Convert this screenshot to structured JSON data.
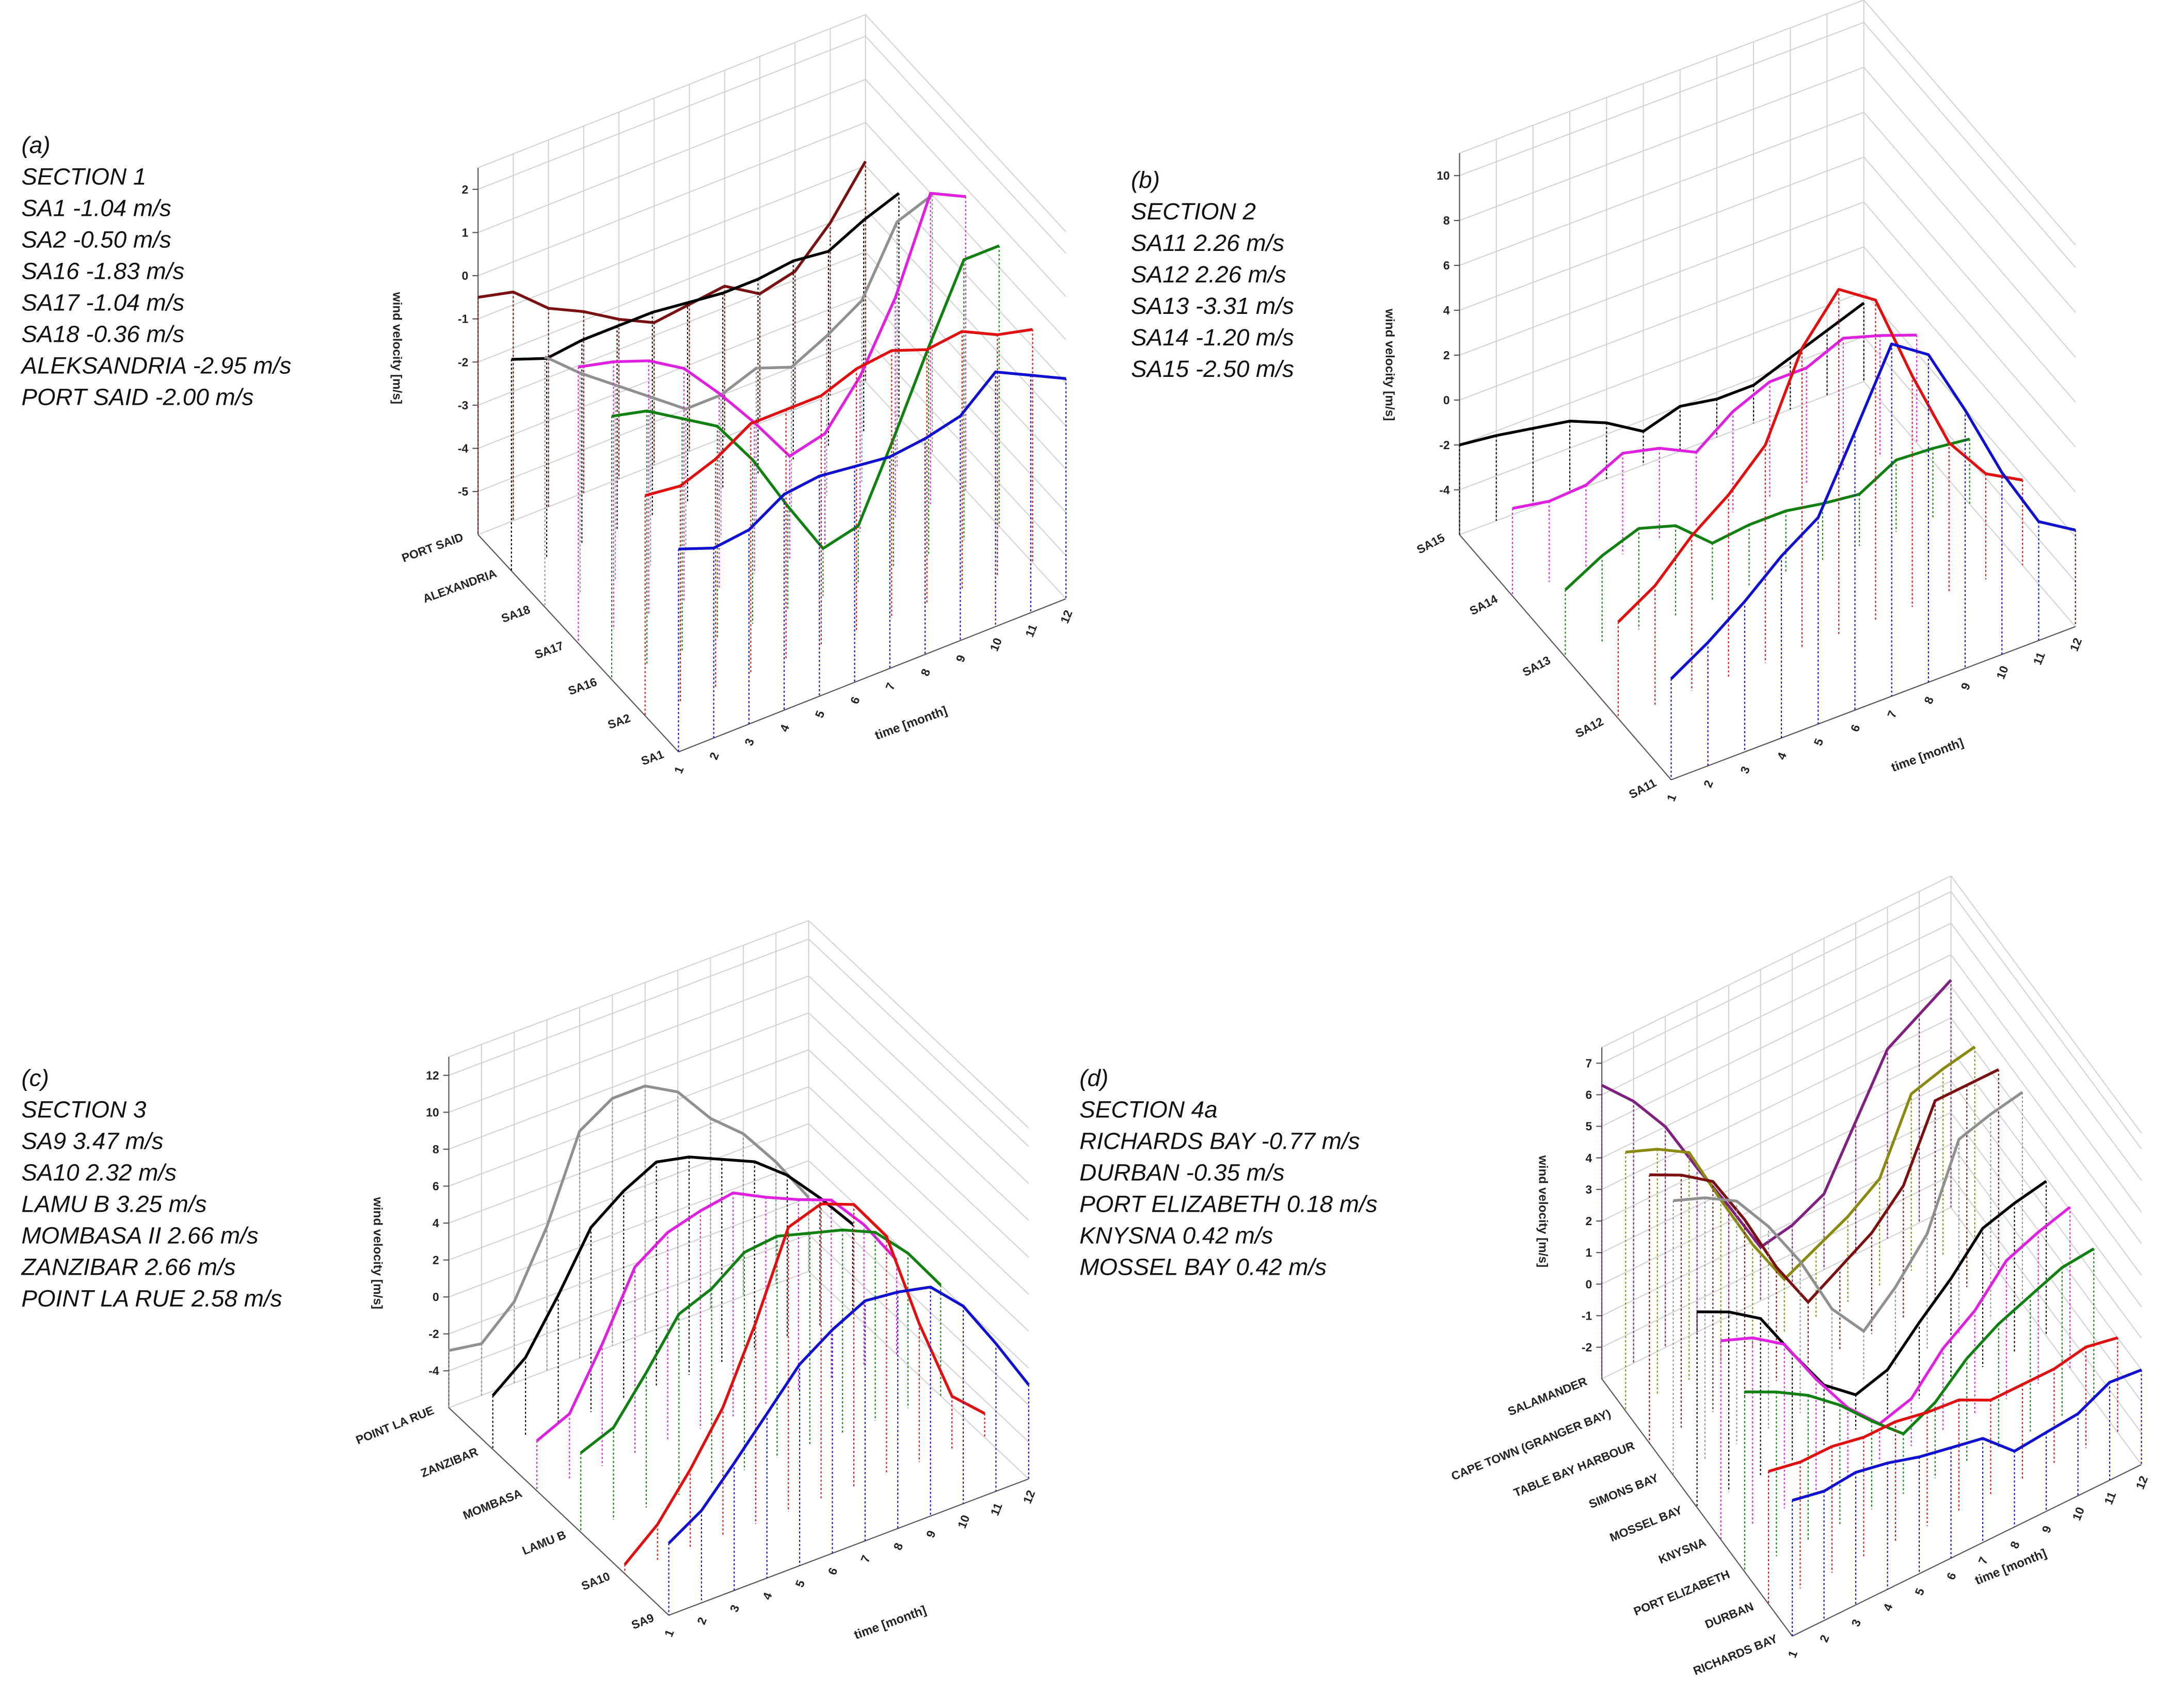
{
  "chart_data": [
    {
      "type": "line3d",
      "annotations": [
        "(a)",
        "SECTION 1",
        "SA1 -1.04 m/s",
        "SA2 -0.50 m/s",
        "SA16 -1.83 m/s",
        "SA17 -1.04 m/s",
        "SA18 -0.36 m/s",
        "ALEKSANDRIA -2.95 m/s",
        "PORT SAID -2.00 m/s"
      ],
      "xlabel": "time [month]",
      "ylabel": "wind velocity [m/s]",
      "x": [
        1,
        2,
        3,
        4,
        5,
        6,
        7,
        8,
        9,
        10,
        11,
        12
      ],
      "xlim": [
        1,
        12
      ],
      "ylim": [
        -6,
        2.5
      ],
      "yticks": [
        -5,
        -4,
        -3,
        -2,
        -1,
        0,
        1,
        2
      ],
      "series": [
        {
          "name": "SA1",
          "color": "#1010d0",
          "values": [
            -1.3,
            -1.6,
            -1.5,
            -1.0,
            -0.9,
            -1.0,
            -1.1,
            -1.0,
            -0.8,
            -0.1,
            -0.5,
            -0.9
          ]
        },
        {
          "name": "SA2",
          "color": "#e01010",
          "values": [
            -0.9,
            -1.0,
            -0.7,
            -0.2,
            -0.2,
            -0.2,
            0.1,
            0.2,
            -0.1,
            0.0,
            -0.4,
            -0.6
          ]
        },
        {
          "name": "SA16",
          "color": "#108010",
          "values": [
            0.1,
            -0.1,
            -0.6,
            -1.1,
            -2.2,
            -3.6,
            -4.9,
            -4.7,
            -3.0,
            -1.2,
            0.5,
            0.5
          ]
        },
        {
          "name": "SA17",
          "color": "#e020e0",
          "values": [
            0.4,
            0.2,
            -0.1,
            -0.6,
            -1.5,
            -2.5,
            -3.6,
            -3.4,
            -2.4,
            -0.9,
            1.2,
            0.8
          ]
        },
        {
          "name": "SA18",
          "color": "#909090",
          "values": [
            -0.2,
            -0.9,
            -1.5,
            -2.1,
            -2.7,
            -2.7,
            -2.4,
            -2.7,
            -2.3,
            -1.8,
            -0.3,
            0.0
          ]
        },
        {
          "name": "ALEXANDRIA",
          "color": "#000000",
          "values": [
            -1.1,
            -1.4,
            -1.3,
            -1.3,
            -1.3,
            -1.4,
            -1.5,
            -1.5,
            -1.4,
            -1.5,
            -1.1,
            -0.8
          ]
        },
        {
          "name": "PORT SAID",
          "color": "#7a1010",
          "values": [
            -0.5,
            -0.7,
            -1.4,
            -1.8,
            -2.3,
            -2.7,
            -2.6,
            -2.5,
            -3.0,
            -2.8,
            -2.0,
            -0.9
          ]
        }
      ]
    },
    {
      "type": "line3d",
      "annotations": [
        "(b)",
        "SECTION 2",
        "SA11 2.26 m/s",
        "SA12 2.26 m/s",
        "SA13 -3.31 m/s",
        "SA14 -1.20 m/s",
        "SA15 -2.50 m/s"
      ],
      "xlabel": "time [month]",
      "ylabel": "wind velocity [m/s]",
      "x": [
        1,
        2,
        3,
        4,
        5,
        6,
        7,
        8,
        9,
        10,
        11,
        12
      ],
      "xlim": [
        1,
        12
      ],
      "ylim": [
        -6,
        11
      ],
      "yticks": [
        -4,
        -2,
        0,
        2,
        4,
        6,
        8,
        10
      ],
      "series": [
        {
          "name": "SA11",
          "color": "#1010d0",
          "values": [
            -1.5,
            -0.5,
            0.7,
            2.1,
            3.2,
            6.4,
            9.7,
            8.6,
            5.5,
            2.1,
            -0.7,
            -1.7
          ]
        },
        {
          "name": "SA12",
          "color": "#e01010",
          "values": [
            -1.7,
            -0.7,
            0.9,
            2.1,
            3.7,
            7.4,
            9.4,
            8.3,
            4.3,
            0.7,
            -1.3,
            -2.2
          ]
        },
        {
          "name": "SA13",
          "color": "#108010",
          "values": [
            -3.0,
            -2.1,
            -1.5,
            -2.0,
            -3.4,
            -3.2,
            -3.2,
            -3.5,
            -3.7,
            -2.8,
            -2.9,
            -3.1
          ]
        },
        {
          "name": "SA14",
          "color": "#e020e0",
          "values": [
            -2.1,
            -2.4,
            -2.3,
            -1.5,
            -1.9,
            -2.7,
            -1.5,
            -0.8,
            -0.8,
            -0.1,
            -0.6,
            -1.2
          ]
        },
        {
          "name": "SA15",
          "color": "#000000",
          "values": [
            -2.0,
            -2.2,
            -2.5,
            -2.8,
            -3.5,
            -4.5,
            -4.0,
            -4.3,
            -4.3,
            -3.7,
            -3.1,
            -2.5
          ]
        }
      ]
    },
    {
      "type": "line3d",
      "annotations": [
        "(c)",
        "SECTION 3",
        "SA9 3.47 m/s",
        "SA10 2.32 m/s",
        "LAMU B 3.25 m/s",
        "MOMBASA II 2.66 m/s",
        "ZANZIBAR 2.66 m/s",
        "POINT LA RUE 2.58 m/s"
      ],
      "xlabel": "time [month]",
      "ylabel": "wind velocity [m/s]",
      "x": [
        1,
        2,
        3,
        4,
        5,
        6,
        7,
        8,
        9,
        10,
        11,
        12
      ],
      "xlim": [
        1,
        12
      ],
      "ylim": [
        -6,
        13
      ],
      "yticks": [
        -4,
        -2,
        0,
        2,
        4,
        6,
        8,
        10,
        12
      ],
      "series": [
        {
          "name": "SA9",
          "color": "#1010d0",
          "values": [
            -2.1,
            -1.0,
            0.9,
            2.9,
            4.9,
            6.1,
            7.0,
            6.8,
            6.4,
            4.7,
            2.0,
            -0.9
          ]
        },
        {
          "name": "SA10",
          "color": "#e01010",
          "values": [
            -5.5,
            -4.0,
            -1.7,
            1.0,
            4.9,
            9.4,
            10.0,
            9.3,
            6.9,
            1.5,
            -3.1,
            -4.7
          ]
        },
        {
          "name": "LAMU B",
          "color": "#108010",
          "values": [
            -1.7,
            -1.0,
            1.3,
            3.8,
            4.5,
            5.8,
            6.0,
            5.5,
            5.0,
            4.2,
            2.4,
            0.0
          ]
        },
        {
          "name": "MOMBASA",
          "color": "#e020e0",
          "values": [
            -3.3,
            -2.5,
            0.6,
            4.1,
            5.3,
            5.8,
            6.1,
            5.2,
            4.4,
            3.7,
            1.7,
            -0.9
          ]
        },
        {
          "name": "ZANZIBAR",
          "color": "#000000",
          "values": [
            -3.1,
            -1.7,
            1.0,
            4.0,
            5.3,
            6.2,
            5.8,
            5.0,
            4.2,
            2.8,
            0.9,
            -1.2
          ]
        },
        {
          "name": "POINT LA RUE",
          "color": "#909090",
          "values": [
            -2.9,
            -3.2,
            -1.6,
            1.8,
            6.3,
            7.4,
            7.4,
            6.4,
            4.3,
            2.8,
            0.6,
            -2.0
          ]
        }
      ]
    },
    {
      "type": "line3d",
      "annotations": [
        "(d)",
        "SECTION 4a",
        "RICHARDS BAY -0.77 m/s",
        "DURBAN -0.35 m/s",
        "PORT ELIZABETH 0.18 m/s",
        "KNYSNA 0.42 m/s",
        "MOSSEL BAY 0.42 m/s"
      ],
      "xlabel": "time [month]",
      "ylabel": "wind velocity [m/s]",
      "x": [
        1,
        2,
        3,
        4,
        5,
        6,
        7,
        8,
        9,
        10,
        11,
        12
      ],
      "xlim": [
        1,
        12
      ],
      "ylim": [
        -3,
        7.5
      ],
      "yticks": [
        -2,
        -1,
        0,
        1,
        2,
        3,
        4,
        5,
        6,
        7
      ],
      "series": [
        {
          "name": "RICHARDS BAY",
          "color": "#1010d0",
          "values": [
            1.3,
            1.1,
            1.2,
            1.0,
            0.7,
            0.5,
            0.3,
            -0.6,
            -0.5,
            -0.4,
            0.1,
            0.0
          ]
        },
        {
          "name": "DURBAN",
          "color": "#e01010",
          "values": [
            1.2,
            1.0,
            1.0,
            0.8,
            0.8,
            0.6,
            0.5,
            0.0,
            0.0,
            0.0,
            0.2,
            0.0
          ]
        },
        {
          "name": "PORT ELIZABETH",
          "color": "#108010",
          "values": [
            2.7,
            2.2,
            1.6,
            0.8,
            -0.2,
            -1.1,
            -0.6,
            0.3,
            0.9,
            1.3,
            1.7,
            1.8
          ]
        },
        {
          "name": "KNYSNA",
          "color": "#e020e0",
          "values": [
            3.3,
            2.9,
            2.2,
            0.6,
            -0.8,
            -1.8,
            -1.5,
            -0.4,
            0.3,
            1.4,
            1.8,
            2.1
          ]
        },
        {
          "name": "MOSSEL BAY",
          "color": "#000000",
          "values": [
            3.2,
            2.7,
            2.0,
            0.4,
            -1.1,
            -1.9,
            -1.6,
            -0.6,
            0.3,
            1.4,
            1.7,
            1.9
          ]
        },
        {
          "name": "SIMONS BAY",
          "color": "#909090",
          "values": [
            5.7,
            5.3,
            4.7,
            3.4,
            1.8,
            -0.2,
            -1.4,
            -0.5,
            0.7,
            3.2,
            3.5,
            3.7
          ]
        },
        {
          "name": "TABLE BAY HARBOUR",
          "color": "#7a1010",
          "values": [
            5.5,
            5.0,
            4.3,
            2.6,
            0.6,
            -1.0,
            -0.4,
            0.2,
            1.2,
            3.4,
            3.4,
            3.4
          ]
        },
        {
          "name": "CAPE TOWN (GRANGER BAY)",
          "color": "#8a8a10",
          "values": [
            5.2,
            4.8,
            4.2,
            2.2,
            0.3,
            -1.3,
            -0.8,
            -0.3,
            0.4,
            2.6,
            2.9,
            3.1
          ]
        },
        {
          "name": "SALAMANDER",
          "color": "#802080",
          "values": [
            6.3,
            5.3,
            4.0,
            2.2,
            0.5,
            -1.3,
            -1.1,
            -0.6,
            1.2,
            3.0,
            3.6,
            4.2
          ]
        }
      ]
    }
  ]
}
